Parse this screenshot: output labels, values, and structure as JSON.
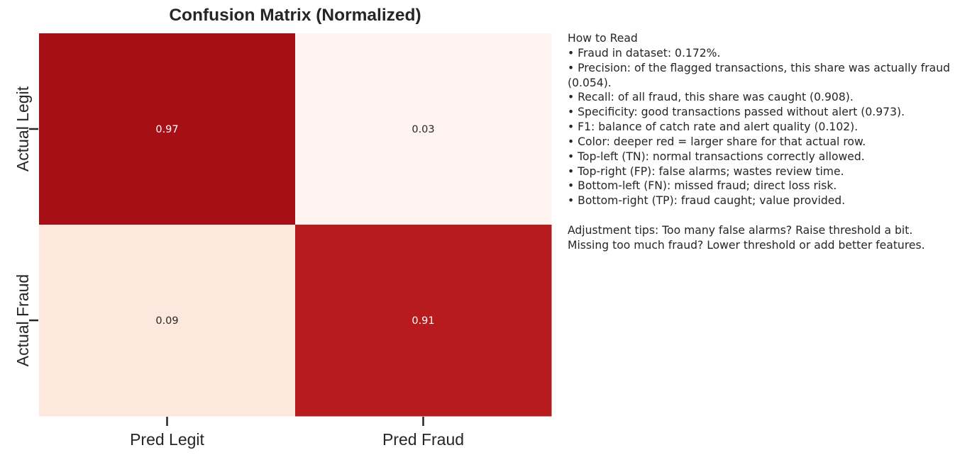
{
  "chart_data": {
    "type": "heatmap",
    "title": "Confusion Matrix (Normalized)",
    "rows": [
      "Actual Legit",
      "Actual Fraud"
    ],
    "columns": [
      "Pred Legit",
      "Pred Fraud"
    ],
    "values": [
      [
        0.97,
        0.03
      ],
      [
        0.09,
        0.91
      ]
    ],
    "labels": [
      [
        "0.97",
        "0.03"
      ],
      [
        "0.09",
        "0.91"
      ]
    ],
    "colorscale": "Reds",
    "cell_colors": [
      [
        "#a50f15",
        "#fff4f0"
      ],
      [
        "#fee8de",
        "#b71b1d"
      ]
    ],
    "annotation_colors": [
      [
        "#ffffff",
        "#262626"
      ],
      [
        "#262626",
        "#ffffff"
      ]
    ],
    "colorbar": false
  },
  "notes": {
    "heading": "How to Read",
    "lines": [
      "• Fraud in dataset: 0.172%.",
      "• Precision: of the flagged transactions, this share was actually fraud (0.054).",
      "• Recall: of all fraud, this share was caught (0.908).",
      "• Specificity: good transactions passed without alert (0.973).",
      "• F1: balance of catch rate and alert quality (0.102).",
      "• Color: deeper red = larger share for that actual row.",
      "• Top-left (TN): normal transactions correctly allowed.",
      "• Top-right (FP): false alarms; wastes review time.",
      "• Bottom-left (FN): missed fraud; direct loss risk.",
      "• Bottom-right (TP): fraud caught; value provided."
    ],
    "tips": [
      "Adjustment tips: Too many false alarms? Raise threshold a bit.",
      "Missing too much fraud? Lower threshold or add better features."
    ]
  }
}
